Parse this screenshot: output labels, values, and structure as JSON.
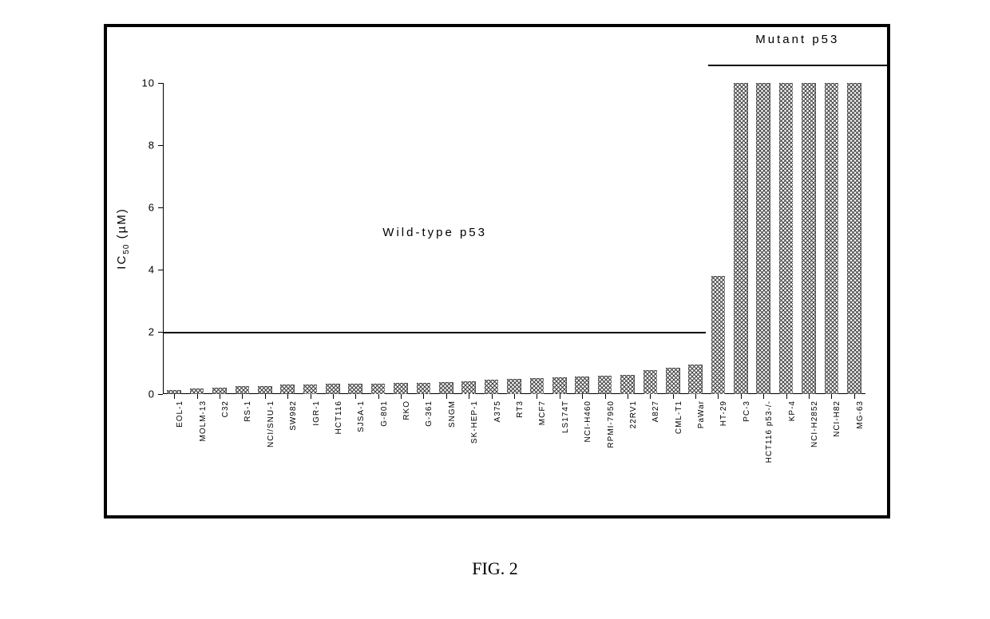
{
  "caption": "FIG. 2",
  "chart": {
    "type": "bar",
    "background_color": "#ffffff",
    "border_color": "#000000",
    "bar_color": "#3a3a3a",
    "bar_pattern": "crosshatch",
    "axis_color": "#000000",
    "text_color": "#000000",
    "y_axis": {
      "label_html": "IC<sub>50</sub> (µM)",
      "label_plain": "IC50 (µM)",
      "min": 0,
      "max": 10,
      "tick_step": 2,
      "ticks": [
        0,
        2,
        4,
        6,
        8,
        10
      ],
      "tick_font_size": 13,
      "label_font_size": 15
    },
    "x_axis": {
      "tick_font_size": 10,
      "label_rotation_deg": -90
    },
    "bar_width_ratio": 0.62,
    "group_labels": [
      {
        "text": "Wild-type p53",
        "start_index": 0,
        "end_index": 23,
        "y_value": 2,
        "label_y_value": 5.2,
        "label_align": "center"
      },
      {
        "text": "Mutant p53",
        "start_index": 24,
        "end_index": 31,
        "y_value": 10.6,
        "label_y_value": 11.4,
        "label_align": "center"
      }
    ],
    "categories": [
      "EOL-1",
      "MOLM-13",
      "C32",
      "RS-1",
      "NCI/SNU-1",
      "SW982",
      "IGR-1",
      "HCT116",
      "SJSA-1",
      "G-801",
      "RKO",
      "G-361",
      "SNGM",
      "SK-HEP-1",
      "A375",
      "RT3",
      "MCF7",
      "LS174T",
      "NCI-H460",
      "RPMI-7950",
      "22RV1",
      "A827",
      "CML-T1",
      "PaWar",
      "HT-29",
      "PC-3",
      "HCT116 p53-/-",
      "KP-4",
      "NCI-H2852",
      "NCI-H82",
      "MG-63"
    ],
    "values": [
      0.12,
      0.18,
      0.2,
      0.25,
      0.25,
      0.3,
      0.32,
      0.33,
      0.33,
      0.34,
      0.36,
      0.36,
      0.38,
      0.42,
      0.46,
      0.5,
      0.52,
      0.54,
      0.56,
      0.58,
      0.62,
      0.78,
      0.84,
      0.96,
      3.8,
      10,
      10,
      10,
      10,
      10,
      10
    ]
  }
}
